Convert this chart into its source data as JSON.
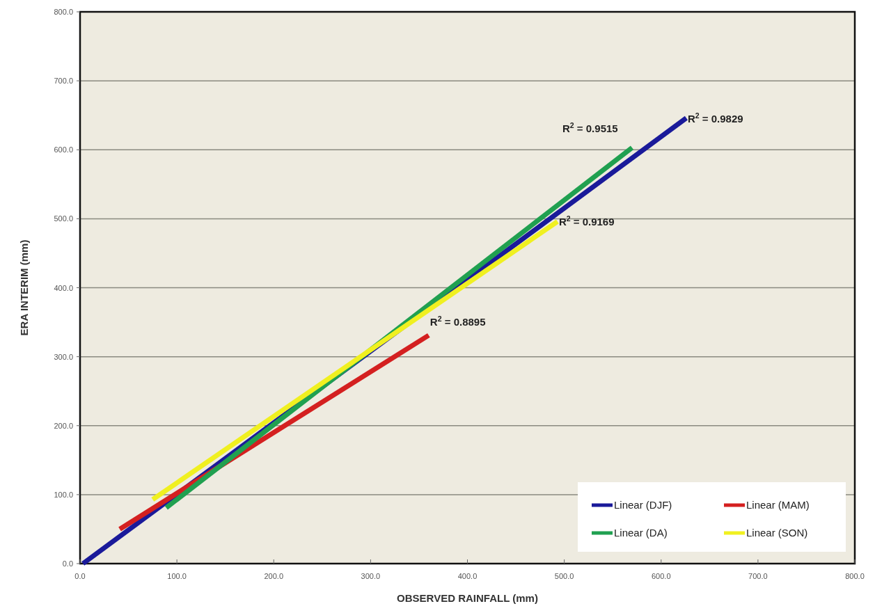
{
  "chart_data": {
    "type": "line",
    "xlabel": "OBSERVED RAINFALL (mm)",
    "ylabel": "ERA INTERIM (mm)",
    "xlim": [
      0,
      800
    ],
    "ylim": [
      0,
      800
    ],
    "xticks": [
      {
        "value": 0,
        "label": "0.0"
      },
      {
        "value": 100,
        "label": "100.0"
      },
      {
        "value": 200,
        "label": "200.0"
      },
      {
        "value": 300,
        "label": "300.0"
      },
      {
        "value": 400,
        "label": "400.0"
      },
      {
        "value": 500,
        "label": "500.0"
      },
      {
        "value": 600,
        "label": "600.0"
      },
      {
        "value": 700,
        "label": "700.0"
      },
      {
        "value": 800,
        "label": "800.0"
      }
    ],
    "yticks": [
      {
        "value": 0,
        "label": "0.0"
      },
      {
        "value": 100,
        "label": "100.0"
      },
      {
        "value": 200,
        "label": "200.0"
      },
      {
        "value": 300,
        "label": "300.0"
      },
      {
        "value": 400,
        "label": "400.0"
      },
      {
        "value": 500,
        "label": "500.0"
      },
      {
        "value": 600,
        "label": "600.0"
      },
      {
        "value": 700,
        "label": "700.0"
      },
      {
        "value": 800,
        "label": "800.0"
      }
    ],
    "grid": "y",
    "legend": "bottom right",
    "marker": "none",
    "line_style": "solid",
    "series": [
      {
        "name": "Linear (DJF)",
        "color": "#1a1a9a",
        "x": [
          3,
          626
        ],
        "values": [
          0,
          646
        ]
      },
      {
        "name": "Linear (MAM)",
        "color": "#d42020",
        "x": [
          41,
          360
        ],
        "values": [
          50,
          331
        ]
      },
      {
        "name": "Linear (DA)",
        "color": "#20a050",
        "x": [
          89,
          570
        ],
        "values": [
          81,
          603
        ]
      },
      {
        "name": "Linear (SON)",
        "color": "#f0f020",
        "x": [
          75,
          493
        ],
        "values": [
          93,
          496
        ]
      }
    ],
    "annotations": [
      {
        "text": "R$^{2}$ = 0.9829",
        "x": 626,
        "y": 646
      },
      {
        "text": "R$^{2}$ = 0.9515",
        "x": 570,
        "y": 603
      },
      {
        "text": "R$^{2}$ = 0.9169",
        "x": 493,
        "y": 496
      },
      {
        "text": "R$^{2}$ = 0.8895",
        "x": 360,
        "y": 331
      }
    ]
  }
}
